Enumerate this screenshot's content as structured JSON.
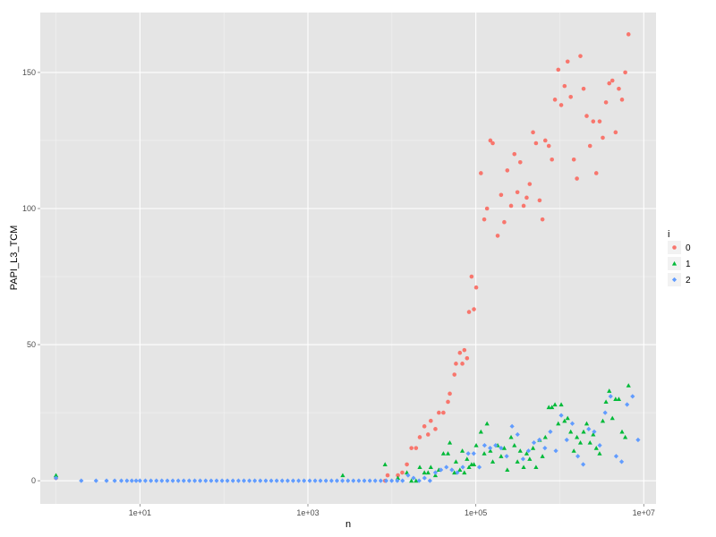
{
  "chart_data": {
    "type": "scatter",
    "title": "",
    "xlabel": "n",
    "ylabel": "PAPI_L3_TCM",
    "x_scale": "log10",
    "xlim": [
      0.65,
      14000000
    ],
    "ylim": [
      -8.5,
      172
    ],
    "x_ticks": [
      10,
      1000,
      100000,
      10000000
    ],
    "x_tick_labels": [
      "1e+01",
      "1e+03",
      "1e+05",
      "1e+07"
    ],
    "y_ticks": [
      0,
      50,
      100,
      150
    ],
    "y_tick_labels": [
      "0",
      "50",
      "100",
      "150"
    ],
    "grid": true,
    "legend": {
      "title": "i",
      "position": "right"
    },
    "series": [
      {
        "name": "0",
        "color": "#f8766d",
        "points": [
          [
            1,
            1
          ],
          [
            8300,
            0
          ],
          [
            8900,
            2
          ],
          [
            11800,
            2
          ],
          [
            13300,
            3
          ],
          [
            15100,
            6
          ],
          [
            17100,
            12
          ],
          [
            19400,
            12
          ],
          [
            21500,
            16
          ],
          [
            24400,
            20
          ],
          [
            27000,
            17
          ],
          [
            29100,
            22
          ],
          [
            33000,
            19
          ],
          [
            36300,
            25
          ],
          [
            41100,
            25
          ],
          [
            46600,
            29
          ],
          [
            49000,
            32
          ],
          [
            55600,
            39
          ],
          [
            58000,
            43
          ],
          [
            64600,
            47
          ],
          [
            69100,
            43
          ],
          [
            73000,
            48
          ],
          [
            78600,
            45
          ],
          [
            83000,
            62
          ],
          [
            89000,
            75
          ],
          [
            95000,
            63
          ],
          [
            101000,
            71
          ],
          [
            115000,
            113
          ],
          [
            126000,
            96
          ],
          [
            136000,
            100
          ],
          [
            149000,
            125
          ],
          [
            159000,
            124
          ],
          [
            182000,
            90
          ],
          [
            200000,
            105
          ],
          [
            218000,
            95
          ],
          [
            237000,
            114
          ],
          [
            263000,
            101
          ],
          [
            288000,
            120
          ],
          [
            313000,
            106
          ],
          [
            338000,
            117
          ],
          [
            371000,
            101
          ],
          [
            403000,
            104
          ],
          [
            438000,
            109
          ],
          [
            480000,
            128
          ],
          [
            521000,
            124
          ],
          [
            575000,
            103
          ],
          [
            622000,
            96
          ],
          [
            672000,
            125
          ],
          [
            740000,
            123
          ],
          [
            806000,
            118
          ],
          [
            876000,
            140
          ],
          [
            959000,
            151
          ],
          [
            1040000,
            138
          ],
          [
            1140000,
            145
          ],
          [
            1240000,
            154
          ],
          [
            1350000,
            141
          ],
          [
            1470000,
            118
          ],
          [
            1600000,
            111
          ],
          [
            1760000,
            156
          ],
          [
            1920000,
            144
          ],
          [
            2090000,
            134
          ],
          [
            2290000,
            123
          ],
          [
            2500000,
            132
          ],
          [
            2720000,
            113
          ],
          [
            2980000,
            132
          ],
          [
            3250000,
            126
          ],
          [
            3550000,
            139
          ],
          [
            3880000,
            146
          ],
          [
            4230000,
            147
          ],
          [
            4620000,
            128
          ],
          [
            5050000,
            144
          ],
          [
            5510000,
            140
          ],
          [
            6020000,
            150
          ],
          [
            6580000,
            164
          ]
        ]
      },
      {
        "name": "1",
        "color": "#00ba38",
        "points": [
          [
            1,
            2
          ],
          [
            2600,
            2
          ],
          [
            8300,
            6
          ],
          [
            11800,
            1
          ],
          [
            15100,
            3
          ],
          [
            17100,
            0
          ],
          [
            19400,
            0
          ],
          [
            21500,
            5
          ],
          [
            24400,
            3
          ],
          [
            27000,
            3
          ],
          [
            29100,
            5
          ],
          [
            33000,
            2
          ],
          [
            36300,
            4
          ],
          [
            41100,
            10
          ],
          [
            46600,
            10
          ],
          [
            49000,
            14
          ],
          [
            55600,
            3
          ],
          [
            58000,
            7
          ],
          [
            64600,
            4
          ],
          [
            69100,
            11
          ],
          [
            73000,
            3
          ],
          [
            78600,
            8
          ],
          [
            83000,
            5
          ],
          [
            89000,
            6
          ],
          [
            95000,
            6
          ],
          [
            101000,
            13
          ],
          [
            115000,
            18
          ],
          [
            126000,
            10
          ],
          [
            136000,
            21
          ],
          [
            149000,
            11
          ],
          [
            159000,
            7
          ],
          [
            182000,
            13
          ],
          [
            200000,
            9
          ],
          [
            218000,
            12
          ],
          [
            237000,
            4
          ],
          [
            263000,
            16
          ],
          [
            288000,
            13
          ],
          [
            313000,
            7
          ],
          [
            338000,
            11
          ],
          [
            371000,
            5
          ],
          [
            403000,
            10
          ],
          [
            438000,
            8
          ],
          [
            480000,
            12
          ],
          [
            521000,
            5
          ],
          [
            575000,
            15
          ],
          [
            622000,
            9
          ],
          [
            672000,
            16
          ],
          [
            740000,
            27
          ],
          [
            806000,
            27
          ],
          [
            876000,
            28
          ],
          [
            959000,
            21
          ],
          [
            1040000,
            28
          ],
          [
            1140000,
            22
          ],
          [
            1240000,
            23
          ],
          [
            1350000,
            18
          ],
          [
            1470000,
            11
          ],
          [
            1600000,
            16
          ],
          [
            1760000,
            14
          ],
          [
            1920000,
            18
          ],
          [
            2090000,
            21
          ],
          [
            2290000,
            14
          ],
          [
            2500000,
            17
          ],
          [
            2720000,
            12
          ],
          [
            2980000,
            10
          ],
          [
            3250000,
            22
          ],
          [
            3550000,
            29
          ],
          [
            3880000,
            33
          ],
          [
            4230000,
            23
          ],
          [
            4620000,
            30
          ],
          [
            5050000,
            30
          ],
          [
            5510000,
            18
          ],
          [
            6020000,
            16
          ],
          [
            6580000,
            35
          ]
        ]
      },
      {
        "name": "2",
        "color": "#619cff",
        "points": [
          [
            1,
            1
          ],
          [
            2,
            0
          ],
          [
            3,
            0
          ],
          [
            4,
            0
          ],
          [
            5,
            0
          ],
          [
            6,
            0
          ],
          [
            7,
            0
          ],
          [
            8,
            0
          ],
          [
            9,
            0
          ],
          [
            10,
            0
          ],
          [
            11.6,
            0
          ],
          [
            13.5,
            0
          ],
          [
            15.7,
            0
          ],
          [
            18.2,
            0
          ],
          [
            21.2,
            0
          ],
          [
            24.6,
            0
          ],
          [
            28.6,
            0
          ],
          [
            33.2,
            0
          ],
          [
            38.6,
            0
          ],
          [
            44.9,
            0
          ],
          [
            52.1,
            0
          ],
          [
            60.6,
            0
          ],
          [
            70.4,
            0
          ],
          [
            81.8,
            0
          ],
          [
            95,
            0
          ],
          [
            110,
            0
          ],
          [
            128,
            0
          ],
          [
            149,
            0
          ],
          [
            173,
            0
          ],
          [
            201,
            0
          ],
          [
            233,
            0
          ],
          [
            271,
            0
          ],
          [
            315,
            0
          ],
          [
            366,
            0
          ],
          [
            425,
            0
          ],
          [
            494,
            0
          ],
          [
            574,
            0
          ],
          [
            667,
            0
          ],
          [
            775,
            0
          ],
          [
            900,
            0
          ],
          [
            1050,
            0
          ],
          [
            1220,
            0
          ],
          [
            1410,
            0
          ],
          [
            1640,
            0
          ],
          [
            1910,
            0
          ],
          [
            2220,
            0
          ],
          [
            2580,
            0
          ],
          [
            3000,
            0
          ],
          [
            3480,
            0
          ],
          [
            4040,
            0
          ],
          [
            4700,
            0
          ],
          [
            5460,
            0
          ],
          [
            6340,
            0
          ],
          [
            7370,
            0
          ],
          [
            8560,
            0
          ],
          [
            9950,
            0
          ],
          [
            11600,
            0
          ],
          [
            13400,
            0
          ],
          [
            15600,
            2
          ],
          [
            18100,
            1
          ],
          [
            21100,
            0
          ],
          [
            24500,
            1
          ],
          [
            28400,
            0
          ],
          [
            33000,
            3
          ],
          [
            38400,
            4
          ],
          [
            44600,
            5
          ],
          [
            51800,
            4
          ],
          [
            60200,
            3
          ],
          [
            69900,
            5
          ],
          [
            81200,
            10
          ],
          [
            94400,
            10
          ],
          [
            110000,
            5
          ],
          [
            127000,
            13
          ],
          [
            148000,
            12
          ],
          [
            172000,
            13
          ],
          [
            200000,
            12
          ],
          [
            233000,
            9
          ],
          [
            270000,
            20
          ],
          [
            314000,
            17
          ],
          [
            365000,
            8
          ],
          [
            424000,
            11
          ],
          [
            492000,
            14
          ],
          [
            572000,
            15
          ],
          [
            665000,
            12
          ],
          [
            772000,
            18
          ],
          [
            897000,
            11
          ],
          [
            1040000,
            24
          ],
          [
            1210000,
            15
          ],
          [
            1410000,
            21
          ],
          [
            1640000,
            9
          ],
          [
            1900000,
            6
          ],
          [
            2210000,
            19
          ],
          [
            2570000,
            18
          ],
          [
            2990000,
            13
          ],
          [
            3470000,
            25
          ],
          [
            4030000,
            31
          ],
          [
            4690000,
            9
          ],
          [
            5450000,
            7
          ],
          [
            6330000,
            28
          ],
          [
            7360000,
            31
          ],
          [
            8550000,
            15
          ]
        ]
      }
    ]
  }
}
